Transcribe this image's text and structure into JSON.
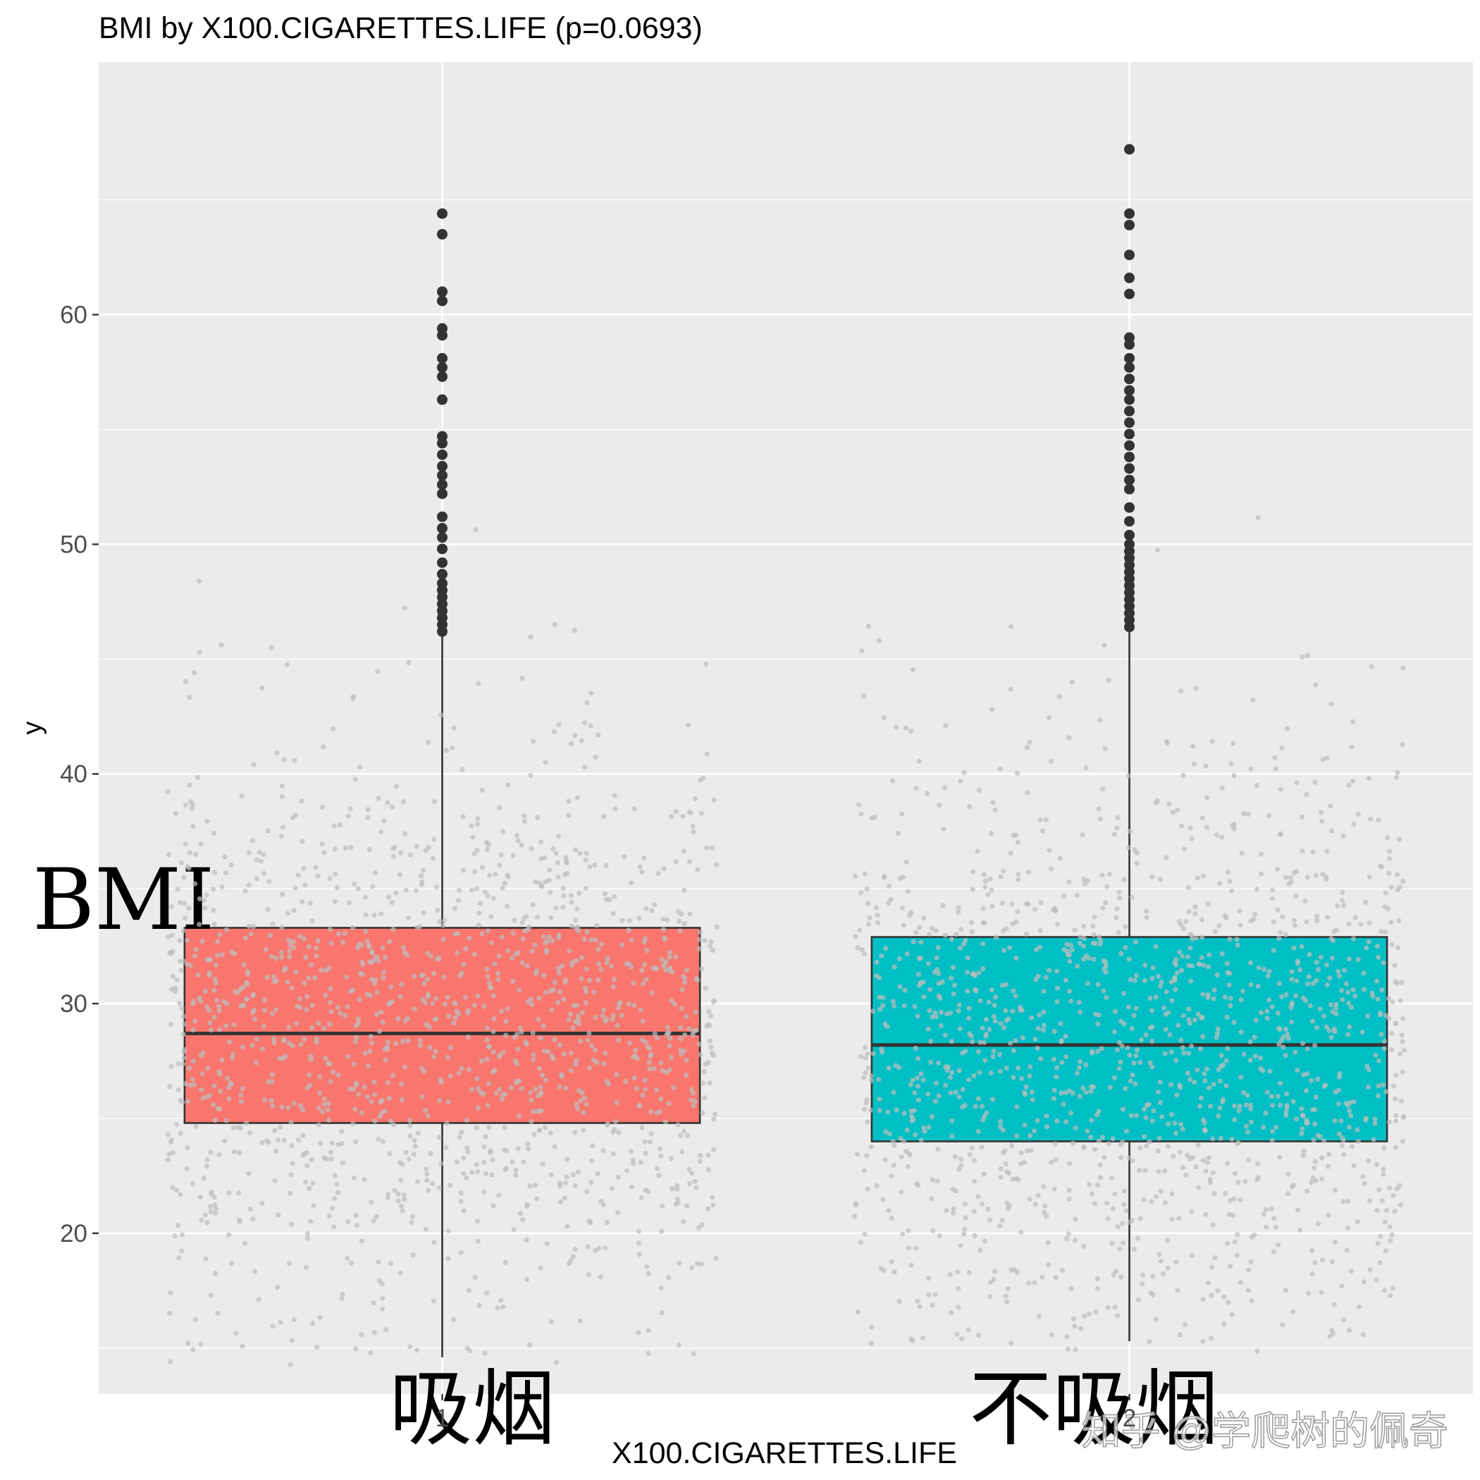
{
  "chart_data": {
    "type": "boxplot",
    "title": "BMI by X100.CIGARETTES.LIFE (p=0.0693)",
    "xlabel": "X100.CIGARETTES.LIFE",
    "ylabel": "y",
    "ylim": [
      13,
      71
    ],
    "y_ticks": [
      20,
      30,
      40,
      50,
      60
    ],
    "grid": true,
    "categories": [
      "1",
      "2"
    ],
    "colors": {
      "panel": "#EBEBEB",
      "grid": "#FFFFFF",
      "box_outline": "#333333",
      "jitter": "#BDBDBD",
      "outlier": "#333333"
    },
    "boxes": [
      {
        "category": "1",
        "label": "吸烟",
        "fill": "#F8766D",
        "q1": 24.8,
        "median": 28.7,
        "q3": 33.3,
        "whisker_low": 14.6,
        "whisker_high": 46.0,
        "outliers": [
          46.2,
          46.5,
          46.8,
          47.1,
          47.4,
          47.7,
          48.0,
          48.3,
          48.7,
          49.2,
          49.8,
          50.3,
          50.7,
          51.2,
          52.2,
          52.6,
          53.0,
          53.4,
          53.9,
          54.4,
          54.7,
          56.3,
          57.3,
          57.7,
          58.1,
          59.1,
          59.4,
          60.6,
          61.0,
          63.5,
          64.4
        ]
      },
      {
        "category": "2",
        "label": "不吸烟",
        "fill": "#00BFC4",
        "q1": 24.0,
        "median": 28.2,
        "q3": 32.9,
        "whisker_low": 15.3,
        "whisker_high": 46.2,
        "outliers": [
          46.4,
          46.7,
          47.0,
          47.3,
          47.6,
          47.9,
          48.2,
          48.5,
          48.8,
          49.1,
          49.4,
          49.7,
          50.0,
          50.4,
          51.0,
          51.6,
          52.4,
          52.8,
          53.3,
          53.8,
          54.3,
          54.8,
          55.3,
          55.8,
          56.3,
          56.7,
          57.2,
          57.7,
          58.1,
          58.7,
          59.0,
          60.9,
          61.6,
          62.6,
          63.9,
          64.4,
          67.2
        ]
      }
    ]
  },
  "annotations": {
    "y_overlay": "BMI",
    "x_overlay_1": "吸烟",
    "x_overlay_2": "不吸烟",
    "watermark": "知乎 @学爬树的佩奇"
  }
}
